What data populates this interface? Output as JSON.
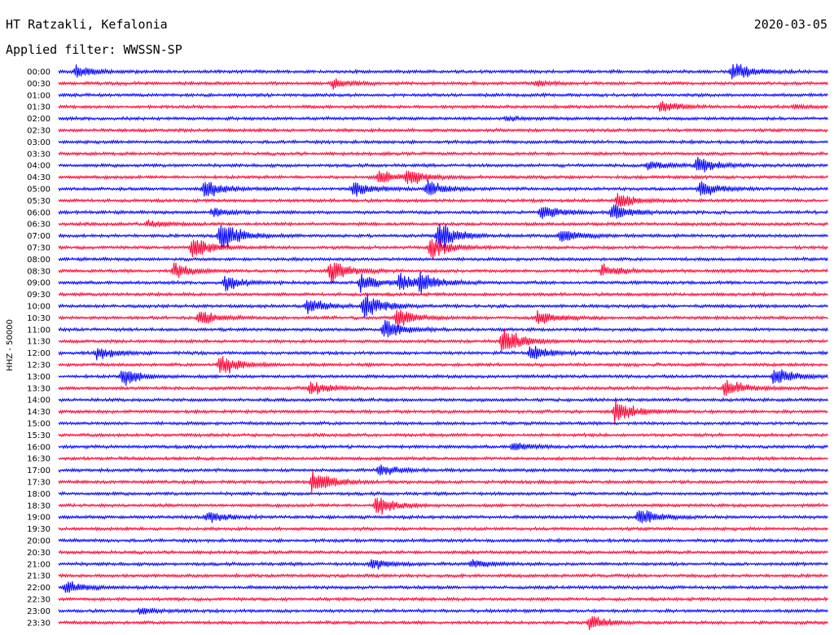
{
  "header": {
    "station": "HT Ratzakli, Kefalonia",
    "date": "2020-03-05",
    "filter": "Applied filter: WWSSN-SP"
  },
  "chart_data": {
    "type": "line",
    "title": "HT Ratzakli, Kefalonia",
    "subtitle": "Applied filter: WWSSN-SP",
    "date": "2020-03-05",
    "ylabel": "HHZ - 50000",
    "xlabel": "",
    "row_labels": [
      "00:00",
      "00:30",
      "01:00",
      "01:30",
      "02:00",
      "02:30",
      "03:00",
      "03:30",
      "04:00",
      "04:30",
      "05:00",
      "05:30",
      "06:00",
      "06:30",
      "07:00",
      "07:30",
      "08:00",
      "08:30",
      "09:00",
      "09:30",
      "10:00",
      "10:30",
      "11:00",
      "11:30",
      "12:00",
      "12:30",
      "13:00",
      "13:30",
      "14:00",
      "14:30",
      "15:00",
      "15:30",
      "16:00",
      "16:30",
      "17:00",
      "17:30",
      "18:00",
      "18:30",
      "19:00",
      "19:30",
      "20:00",
      "20:30",
      "21:00",
      "21:30",
      "22:00",
      "22:30",
      "23:00",
      "23:30"
    ],
    "trace_minutes": 30,
    "series_colors": [
      "#0000ff",
      "#ff0033"
    ],
    "events": [
      {
        "row": 0,
        "t": 0.7,
        "amp": 1.0
      },
      {
        "row": 0,
        "t": 26.3,
        "amp": 1.6
      },
      {
        "row": 1,
        "t": 10.7,
        "amp": 0.8
      },
      {
        "row": 1,
        "t": 18.6,
        "amp": 0.4
      },
      {
        "row": 3,
        "t": 23.5,
        "amp": 0.9
      },
      {
        "row": 3,
        "t": 28.7,
        "amp": 0.3
      },
      {
        "row": 4,
        "t": 17.5,
        "amp": 0.3
      },
      {
        "row": 8,
        "t": 23.0,
        "amp": 0.9
      },
      {
        "row": 8,
        "t": 24.9,
        "amp": 1.4
      },
      {
        "row": 9,
        "t": 12.5,
        "amp": 1.1
      },
      {
        "row": 9,
        "t": 13.6,
        "amp": 1.3
      },
      {
        "row": 10,
        "t": 5.7,
        "amp": 1.6
      },
      {
        "row": 10,
        "t": 11.5,
        "amp": 1.4
      },
      {
        "row": 10,
        "t": 14.4,
        "amp": 1.3
      },
      {
        "row": 10,
        "t": 25.0,
        "amp": 1.4
      },
      {
        "row": 11,
        "t": 21.8,
        "amp": 1.3
      },
      {
        "row": 12,
        "t": 18.8,
        "amp": 1.3
      },
      {
        "row": 12,
        "t": 21.6,
        "amp": 1.3
      },
      {
        "row": 12,
        "t": 6.0,
        "amp": 0.7
      },
      {
        "row": 13,
        "t": 3.5,
        "amp": 0.6
      },
      {
        "row": 14,
        "t": 6.3,
        "amp": 2.8
      },
      {
        "row": 14,
        "t": 14.8,
        "amp": 2.4
      },
      {
        "row": 14,
        "t": 19.6,
        "amp": 1.3
      },
      {
        "row": 15,
        "t": 5.2,
        "amp": 1.8
      },
      {
        "row": 15,
        "t": 14.5,
        "amp": 2.0
      },
      {
        "row": 17,
        "t": 4.5,
        "amp": 1.3
      },
      {
        "row": 17,
        "t": 10.6,
        "amp": 1.9
      },
      {
        "row": 17,
        "t": 21.2,
        "amp": 1.0
      },
      {
        "row": 18,
        "t": 6.5,
        "amp": 1.2
      },
      {
        "row": 18,
        "t": 11.8,
        "amp": 1.4
      },
      {
        "row": 18,
        "t": 13.3,
        "amp": 1.3
      },
      {
        "row": 18,
        "t": 14.1,
        "amp": 1.5
      },
      {
        "row": 20,
        "t": 9.7,
        "amp": 1.4
      },
      {
        "row": 20,
        "t": 11.9,
        "amp": 2.0
      },
      {
        "row": 21,
        "t": 5.5,
        "amp": 1.3
      },
      {
        "row": 21,
        "t": 13.2,
        "amp": 1.5
      },
      {
        "row": 21,
        "t": 18.7,
        "amp": 1.3
      },
      {
        "row": 22,
        "t": 12.7,
        "amp": 1.6
      },
      {
        "row": 23,
        "t": 17.3,
        "amp": 2.6
      },
      {
        "row": 24,
        "t": 1.5,
        "amp": 1.0
      },
      {
        "row": 24,
        "t": 18.4,
        "amp": 1.4
      },
      {
        "row": 25,
        "t": 6.3,
        "amp": 1.7
      },
      {
        "row": 26,
        "t": 2.5,
        "amp": 1.4
      },
      {
        "row": 26,
        "t": 27.9,
        "amp": 1.6
      },
      {
        "row": 27,
        "t": 9.8,
        "amp": 1.2
      },
      {
        "row": 27,
        "t": 26.0,
        "amp": 1.5
      },
      {
        "row": 29,
        "t": 21.7,
        "amp": 1.9
      },
      {
        "row": 32,
        "t": 17.7,
        "amp": 0.7
      },
      {
        "row": 34,
        "t": 12.5,
        "amp": 1.0
      },
      {
        "row": 35,
        "t": 9.9,
        "amp": 2.1
      },
      {
        "row": 37,
        "t": 12.4,
        "amp": 1.7
      },
      {
        "row": 38,
        "t": 5.8,
        "amp": 1.1
      },
      {
        "row": 38,
        "t": 22.6,
        "amp": 1.6
      },
      {
        "row": 42,
        "t": 12.2,
        "amp": 0.9
      },
      {
        "row": 42,
        "t": 16.1,
        "amp": 0.8
      },
      {
        "row": 44,
        "t": 0.3,
        "amp": 1.1
      },
      {
        "row": 46,
        "t": 3.2,
        "amp": 0.5
      },
      {
        "row": 47,
        "t": 20.7,
        "amp": 1.3
      }
    ]
  }
}
